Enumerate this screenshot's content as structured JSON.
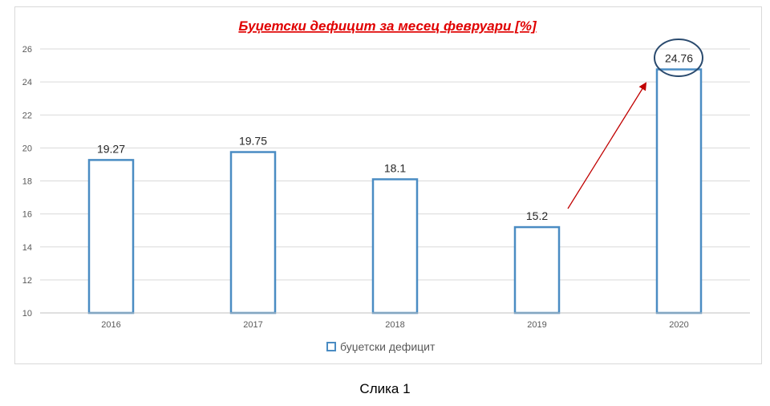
{
  "chart_data": {
    "type": "bar",
    "title": "Буџетски дефицит за месец февруари [%]",
    "categories": [
      "2016",
      "2017",
      "2018",
      "2019",
      "2020"
    ],
    "series": [
      {
        "name": "буџетски дефицит",
        "values": [
          19.27,
          19.75,
          18.1,
          15.2,
          24.76
        ]
      }
    ],
    "data_labels": [
      "19.27",
      "19.75",
      "18.1",
      "15.2",
      "24.76"
    ],
    "y_ticks": [
      "10",
      "12",
      "14",
      "16",
      "18",
      "20",
      "22",
      "24",
      "26"
    ],
    "xlabel": "",
    "ylabel": "",
    "ylim": [
      10,
      26
    ],
    "grid": true,
    "legend_position": "bottom",
    "annotations": {
      "arrow": "from 2019 toward 2020",
      "highlight": "2020 value circled"
    },
    "colors": {
      "bar_stroke": "#4a8cc3",
      "title": "#e00000",
      "arrow": "#c00000",
      "circle": "#2a4a6e",
      "grid": "#d9d9d9",
      "axis_text": "#595959"
    }
  },
  "caption": "Слика 1"
}
